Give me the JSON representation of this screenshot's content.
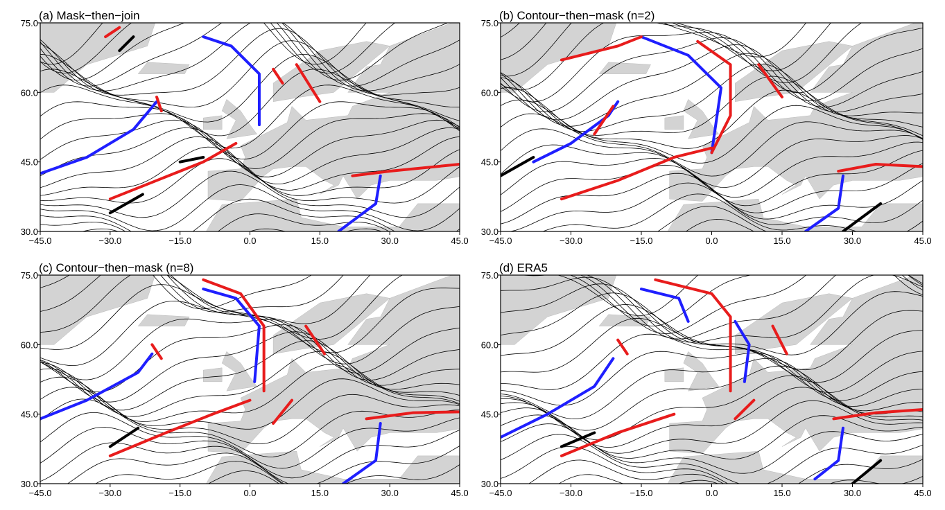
{
  "panels": [
    {
      "title": "(a) Mask−then−join",
      "xlim": [
        -45,
        45
      ],
      "ylim": [
        30,
        75
      ],
      "xticks": [
        {
          "value": -45,
          "label": "−45.0"
        },
        {
          "value": -30,
          "label": "−30.0"
        },
        {
          "value": -15,
          "label": "−15.0"
        },
        {
          "value": 0,
          "label": "0.0"
        },
        {
          "value": 15,
          "label": "15.0"
        },
        {
          "value": 30,
          "label": "30.0"
        },
        {
          "value": 45,
          "label": "45.0"
        }
      ],
      "yticks": [
        {
          "value": 30,
          "label": "30.0"
        },
        {
          "value": 45,
          "label": "45.0"
        },
        {
          "value": 60,
          "label": "60.0"
        },
        {
          "value": 75,
          "label": "75.0"
        }
      ]
    },
    {
      "title": "(b) Contour−then−mask (n=2)",
      "xlim": [
        -45,
        45
      ],
      "ylim": [
        30,
        75
      ],
      "xticks": [
        {
          "value": -45,
          "label": "−45.0"
        },
        {
          "value": -30,
          "label": "−30.0"
        },
        {
          "value": -15,
          "label": "−15.0"
        },
        {
          "value": 0,
          "label": "0.0"
        },
        {
          "value": 15,
          "label": "15.0"
        },
        {
          "value": 30,
          "label": "30.0"
        },
        {
          "value": 45,
          "label": "45.0"
        }
      ],
      "yticks": [
        {
          "value": 30,
          "label": "30.0"
        },
        {
          "value": 45,
          "label": "45.0"
        },
        {
          "value": 60,
          "label": "60.0"
        },
        {
          "value": 75,
          "label": "75.0"
        }
      ]
    },
    {
      "title": "(c) Contour−then−mask (n=8)",
      "xlim": [
        -45,
        45
      ],
      "ylim": [
        30,
        75
      ],
      "xticks": [
        {
          "value": -45,
          "label": "−45.0"
        },
        {
          "value": -30,
          "label": "−30.0"
        },
        {
          "value": -15,
          "label": "−15.0"
        },
        {
          "value": 0,
          "label": "0.0"
        },
        {
          "value": 15,
          "label": "15.0"
        },
        {
          "value": 30,
          "label": "30.0"
        },
        {
          "value": 45,
          "label": "45.0"
        }
      ],
      "yticks": [
        {
          "value": 30,
          "label": "30.0"
        },
        {
          "value": 45,
          "label": "45.0"
        },
        {
          "value": 60,
          "label": "60.0"
        },
        {
          "value": 75,
          "label": "75.0"
        }
      ]
    },
    {
      "title": "(d) ERA5",
      "xlim": [
        -45,
        45
      ],
      "ylim": [
        30,
        75
      ],
      "xticks": [
        {
          "value": -45,
          "label": "−45.0"
        },
        {
          "value": -30,
          "label": "−30.0"
        },
        {
          "value": -15,
          "label": "−15.0"
        },
        {
          "value": 0,
          "label": "0.0"
        },
        {
          "value": 15,
          "label": "15.0"
        },
        {
          "value": 30,
          "label": "30.0"
        },
        {
          "value": 45,
          "label": "45.0"
        }
      ],
      "yticks": [
        {
          "value": 30,
          "label": "30.0"
        },
        {
          "value": 45,
          "label": "45.0"
        },
        {
          "value": 60,
          "label": "60.0"
        },
        {
          "value": 75,
          "label": "75.0"
        }
      ]
    }
  ]
}
